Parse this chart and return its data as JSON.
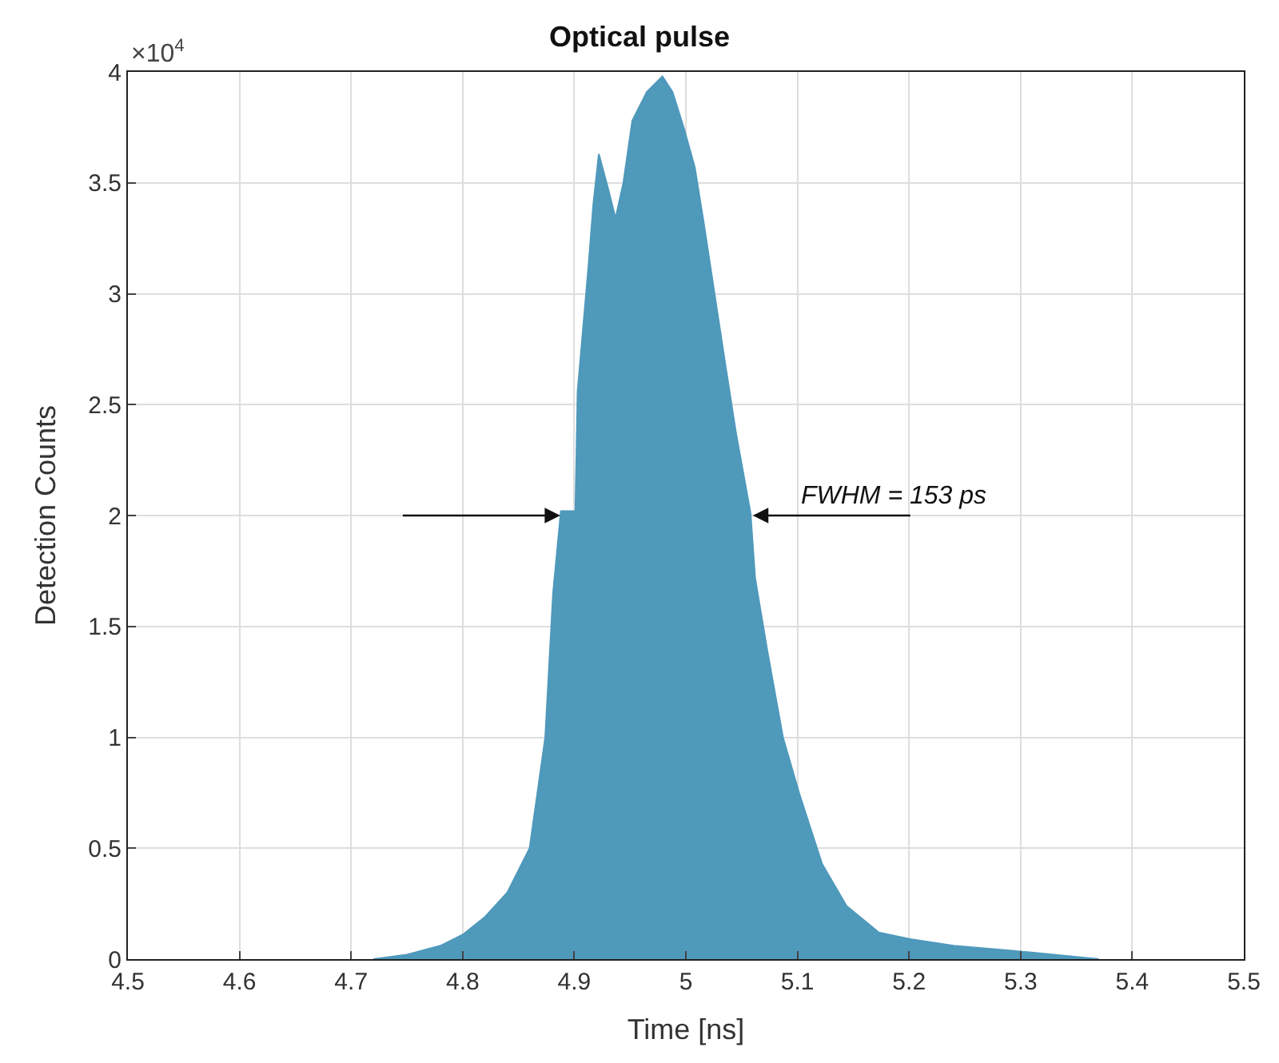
{
  "chart_data": {
    "type": "area",
    "title": "Optical pulse",
    "xlabel": "Time [ns]",
    "ylabel": "Detection Counts",
    "x": [
      4.72,
      4.75,
      4.78,
      4.8,
      4.82,
      4.84,
      4.86,
      4.874,
      4.881,
      4.888,
      4.901,
      4.903,
      4.913,
      4.917,
      4.922,
      4.93,
      4.937,
      4.944,
      4.952,
      4.965,
      4.979,
      4.988,
      4.998,
      5.008,
      5.016,
      5.026,
      5.036,
      5.045,
      5.058,
      5.062,
      5.073,
      5.087,
      5.102,
      5.122,
      5.144,
      5.173,
      5.201,
      5.24,
      5.31,
      5.37
    ],
    "series": [
      {
        "color": "#4f99bb",
        "values": [
          0,
          0.02,
          0.06,
          0.11,
          0.19,
          0.3,
          0.5,
          1.0,
          1.65,
          2.02,
          2.02,
          2.56,
          3.14,
          3.4,
          3.63,
          3.48,
          3.34,
          3.5,
          3.78,
          3.91,
          3.98,
          3.91,
          3.75,
          3.57,
          3.32,
          2.99,
          2.66,
          2.37,
          2.01,
          1.72,
          1.39,
          1.0,
          0.74,
          0.43,
          0.24,
          0.12,
          0.09,
          0.06,
          0.03,
          0
        ]
      }
    ],
    "xlim": [
      4.5,
      5.5
    ],
    "xticks": [
      4.5,
      4.6,
      4.7,
      4.8,
      4.9,
      5,
      5.1,
      5.2,
      5.3,
      5.4,
      5.5
    ],
    "ylim": [
      0,
      4
    ],
    "yticks": [
      0,
      0.5,
      1,
      1.5,
      2,
      2.5,
      3,
      3.5,
      4
    ],
    "annotations": [
      "×10$^{4}$",
      {
        "text": "FWHM = 153 ps",
        "x": 5.06,
        "y": 2
      }
    ],
    "grid": true
  }
}
